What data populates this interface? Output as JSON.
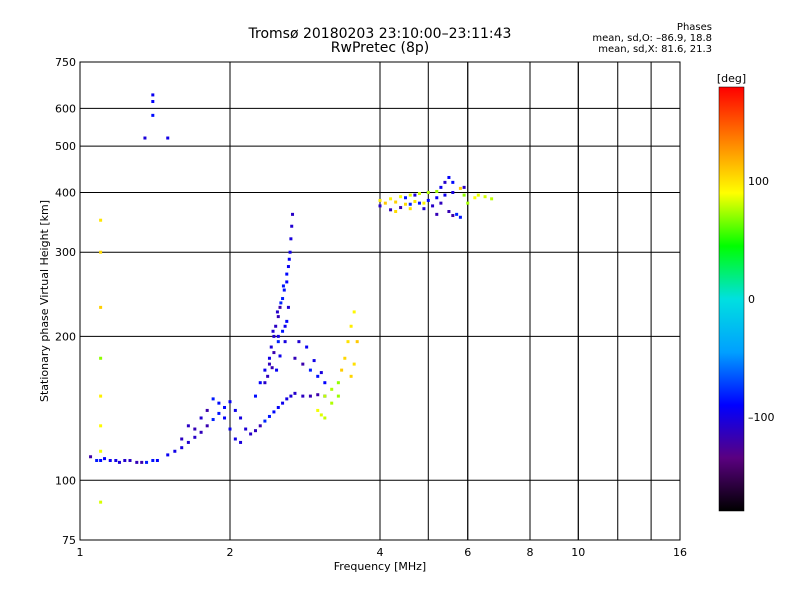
{
  "title_line1": "Tromsø 20180203 23:10:00–23:11:43",
  "title_line2": "RwPretec (8p)",
  "stats": {
    "header": "Phases",
    "o_line": "mean, sd,O: –86.9, 18.8",
    "x_line": "mean, sd,X: 81.6, 21.3"
  },
  "chart_data": {
    "type": "scatter",
    "title": "Tromsø 20180203 23:10:00–23:11:43",
    "subtitle": "RwPretec (8p)",
    "xlabel": "Frequency [MHz]",
    "ylabel": "Stationary phase Virtual Height [km]",
    "xscale": "log",
    "yscale": "log",
    "xlim": [
      1,
      16
    ],
    "ylim": [
      75,
      750
    ],
    "xticks": [
      1,
      2,
      4,
      6,
      8,
      10,
      16
    ],
    "xtick_labels": [
      "1",
      "2",
      "4",
      "6",
      "8",
      "10",
      "16"
    ],
    "yticks": [
      75,
      100,
      200,
      300,
      400,
      500,
      600,
      750
    ],
    "ytick_labels": [
      "75",
      "100",
      "200",
      "300",
      "400",
      "500",
      "600",
      "750"
    ],
    "grid": true,
    "colorbar": {
      "label": "[deg]",
      "min": -180,
      "max": 180,
      "ticks": [
        100,
        0,
        -100
      ],
      "tick_labels": [
        "100",
        "0",
        "–100"
      ],
      "colors": [
        "#000000",
        "#5a0080",
        "#0000ff",
        "#00a0ff",
        "#00e0e0",
        "#00ff00",
        "#ffff00",
        "#ff8000",
        "#ff0000"
      ]
    },
    "series": [
      {
        "name": "O",
        "phase_deg": -100,
        "points": [
          [
            1.05,
            112
          ],
          [
            1.08,
            110
          ],
          [
            1.1,
            110
          ],
          [
            1.12,
            111
          ],
          [
            1.15,
            110
          ],
          [
            1.18,
            110
          ],
          [
            1.2,
            109
          ],
          [
            1.23,
            110
          ],
          [
            1.26,
            110
          ],
          [
            1.3,
            109
          ],
          [
            1.33,
            109
          ],
          [
            1.36,
            109
          ],
          [
            1.4,
            110
          ],
          [
            1.43,
            110
          ],
          [
            1.5,
            113
          ],
          [
            1.55,
            115
          ],
          [
            1.6,
            117
          ],
          [
            1.65,
            120
          ],
          [
            1.7,
            123
          ],
          [
            1.75,
            126
          ],
          [
            1.8,
            130
          ],
          [
            1.85,
            134
          ],
          [
            1.9,
            138
          ],
          [
            1.95,
            142
          ],
          [
            2.0,
            146
          ],
          [
            2.05,
            140
          ],
          [
            2.1,
            135
          ],
          [
            2.15,
            128
          ],
          [
            2.2,
            125
          ],
          [
            2.25,
            127
          ],
          [
            2.3,
            130
          ],
          [
            2.35,
            133
          ],
          [
            2.4,
            136
          ],
          [
            2.45,
            139
          ],
          [
            2.5,
            142
          ],
          [
            2.55,
            145
          ],
          [
            2.6,
            148
          ],
          [
            2.65,
            150
          ],
          [
            2.7,
            152
          ],
          [
            2.8,
            150
          ],
          [
            2.9,
            150
          ],
          [
            3.0,
            151
          ],
          [
            3.1,
            150
          ],
          [
            2.25,
            150
          ],
          [
            2.3,
            160
          ],
          [
            2.35,
            170
          ],
          [
            2.4,
            180
          ],
          [
            2.42,
            190
          ],
          [
            2.45,
            200
          ],
          [
            2.47,
            210
          ],
          [
            2.5,
            220
          ],
          [
            2.52,
            230
          ],
          [
            2.55,
            240
          ],
          [
            2.57,
            250
          ],
          [
            2.6,
            260
          ],
          [
            2.62,
            280
          ],
          [
            2.64,
            300
          ],
          [
            2.65,
            320
          ],
          [
            2.66,
            340
          ],
          [
            2.67,
            360
          ],
          [
            2.4,
            175
          ],
          [
            2.45,
            185
          ],
          [
            2.5,
            195
          ],
          [
            2.55,
            205
          ],
          [
            2.6,
            215
          ],
          [
            2.48,
            170
          ],
          [
            2.52,
            182
          ],
          [
            2.58,
            195
          ],
          [
            2.62,
            230
          ],
          [
            2.35,
            160
          ],
          [
            2.38,
            165
          ],
          [
            2.43,
            172
          ],
          [
            2.53,
            235
          ],
          [
            2.56,
            255
          ],
          [
            2.6,
            270
          ],
          [
            2.63,
            290
          ],
          [
            2.58,
            210
          ],
          [
            2.5,
            200
          ],
          [
            2.44,
            205
          ],
          [
            2.49,
            225
          ],
          [
            1.6,
            122
          ],
          [
            1.7,
            128
          ],
          [
            1.8,
            140
          ],
          [
            1.85,
            148
          ],
          [
            1.9,
            145
          ],
          [
            1.95,
            135
          ],
          [
            2.0,
            128
          ],
          [
            2.05,
            122
          ],
          [
            2.1,
            120
          ],
          [
            1.75,
            135
          ],
          [
            1.65,
            130
          ],
          [
            2.7,
            180
          ],
          [
            2.8,
            175
          ],
          [
            2.9,
            170
          ],
          [
            3.0,
            165
          ],
          [
            3.1,
            160
          ],
          [
            2.85,
            190
          ],
          [
            2.95,
            178
          ],
          [
            3.05,
            168
          ],
          [
            2.75,
            195
          ],
          [
            4.0,
            375
          ],
          [
            4.2,
            368
          ],
          [
            4.4,
            372
          ],
          [
            4.6,
            378
          ],
          [
            4.8,
            380
          ],
          [
            5.0,
            385
          ],
          [
            5.2,
            390
          ],
          [
            5.4,
            395
          ],
          [
            5.6,
            400
          ],
          [
            4.9,
            370
          ],
          [
            5.1,
            375
          ],
          [
            5.3,
            380
          ],
          [
            5.5,
            365
          ],
          [
            5.7,
            360
          ],
          [
            5.8,
            355
          ],
          [
            5.6,
            420
          ],
          [
            5.5,
            430
          ],
          [
            5.3,
            410
          ],
          [
            5.0,
            400
          ],
          [
            4.7,
            395
          ],
          [
            5.4,
            420
          ],
          [
            5.9,
            410
          ],
          [
            5.2,
            360
          ],
          [
            5.6,
            358
          ],
          [
            4.5,
            390
          ],
          [
            1.4,
            580
          ],
          [
            1.4,
            620
          ],
          [
            1.4,
            640
          ],
          [
            1.5,
            520
          ],
          [
            1.35,
            520
          ]
        ]
      },
      {
        "name": "X",
        "phase_deg": 90,
        "points": [
          [
            1.1,
            180
          ],
          [
            1.1,
            230
          ],
          [
            1.1,
            300
          ],
          [
            1.1,
            350
          ],
          [
            1.1,
            150
          ],
          [
            1.1,
            130
          ],
          [
            1.1,
            115
          ],
          [
            1.1,
            90
          ],
          [
            3.1,
            150
          ],
          [
            3.2,
            155
          ],
          [
            3.3,
            160
          ],
          [
            3.35,
            170
          ],
          [
            3.4,
            180
          ],
          [
            3.45,
            195
          ],
          [
            3.5,
            210
          ],
          [
            3.55,
            225
          ],
          [
            3.0,
            140
          ],
          [
            3.05,
            137
          ],
          [
            3.1,
            135
          ],
          [
            3.2,
            145
          ],
          [
            3.3,
            150
          ],
          [
            3.6,
            195
          ],
          [
            3.5,
            165
          ],
          [
            3.55,
            175
          ],
          [
            4.0,
            385
          ],
          [
            4.2,
            388
          ],
          [
            4.4,
            392
          ],
          [
            4.6,
            395
          ],
          [
            4.8,
            398
          ],
          [
            5.0,
            400
          ],
          [
            5.2,
            402
          ],
          [
            4.1,
            380
          ],
          [
            4.3,
            382
          ],
          [
            4.5,
            378
          ],
          [
            4.7,
            383
          ],
          [
            4.9,
            380
          ],
          [
            6.2,
            390
          ],
          [
            6.3,
            395
          ],
          [
            6.5,
            392
          ],
          [
            6.7,
            388
          ],
          [
            6.0,
            380
          ],
          [
            5.9,
            395
          ],
          [
            5.8,
            408
          ],
          [
            4.3,
            365
          ],
          [
            4.6,
            370
          ]
        ]
      }
    ]
  }
}
